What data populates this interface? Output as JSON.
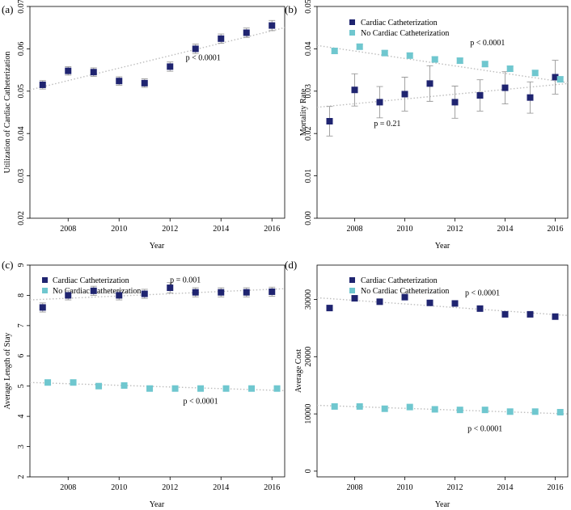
{
  "colors": {
    "cath": "#1f2470",
    "nocath": "#6fc7cf"
  },
  "chart_data": [
    {
      "panel": "(a)",
      "type": "scatter",
      "xlabel": "Year",
      "ylabel": "Utilization of Cardiac Catheterization",
      "xlim": [
        2006.5,
        2016.5
      ],
      "ylim": [
        0.02,
        0.07
      ],
      "xticks": [
        2008,
        2010,
        2012,
        2014,
        2016
      ],
      "xtick_labels": [
        "2008",
        "2010",
        "2012",
        "2014",
        "2016"
      ],
      "yticks": [
        0.02,
        0.03,
        0.04,
        0.05,
        0.06,
        0.07
      ],
      "ytick_labels": [
        "0.02",
        "0.03",
        "0.04",
        "0.05",
        "0.06",
        "0.07"
      ],
      "legend": [],
      "series": [
        {
          "name": "Utilization",
          "color_key": "cath",
          "x": [
            2007,
            2008,
            2009,
            2010,
            2011,
            2012,
            2013,
            2014,
            2015,
            2016
          ],
          "values": [
            0.0515,
            0.0548,
            0.0545,
            0.0524,
            0.0519,
            0.0558,
            0.06,
            0.0624,
            0.0638,
            0.0655
          ],
          "err": [
            0.001,
            0.001,
            0.001,
            0.001,
            0.001,
            0.0011,
            0.0011,
            0.0011,
            0.0011,
            0.0012
          ],
          "trend": [
            0.0503,
            0.065
          ]
        }
      ],
      "annotations": [
        {
          "text": "p < 0.0001",
          "x": 2013.3,
          "y": 0.0573
        }
      ]
    },
    {
      "panel": "(b)",
      "type": "scatter",
      "xlabel": "Year",
      "ylabel": "Mortality Rate",
      "xlim": [
        2006.5,
        2016.5
      ],
      "ylim": [
        0.0,
        0.05
      ],
      "xticks": [
        2008,
        2010,
        2012,
        2014,
        2016
      ],
      "xtick_labels": [
        "2008",
        "2010",
        "2012",
        "2014",
        "2016"
      ],
      "yticks": [
        0.0,
        0.01,
        0.02,
        0.03,
        0.04,
        0.05
      ],
      "ytick_labels": [
        "0.00",
        "0.01",
        "0.02",
        "0.03",
        "0.04",
        "0.05"
      ],
      "legend": [
        "Cardiac Catheterization",
        "No Cardiac Catheterization"
      ],
      "series": [
        {
          "name": "Cardiac Catheterization",
          "color_key": "cath",
          "x": [
            2007,
            2008,
            2009,
            2010,
            2011,
            2012,
            2013,
            2014,
            2015,
            2016
          ],
          "values": [
            0.0229,
            0.0303,
            0.0274,
            0.0293,
            0.0318,
            0.0274,
            0.029,
            0.0308,
            0.0285,
            0.0333
          ],
          "err": [
            0.0035,
            0.0038,
            0.0037,
            0.004,
            0.0042,
            0.0038,
            0.0037,
            0.0038,
            0.0037,
            0.004
          ],
          "trend": [
            0.0262,
            0.0318
          ]
        },
        {
          "name": "No Cardiac Catheterization",
          "color_key": "nocath",
          "x": [
            2007.2,
            2008.2,
            2009.2,
            2010.2,
            2011.2,
            2012.2,
            2013.2,
            2014.2,
            2015.2,
            2016.2
          ],
          "values": [
            0.0395,
            0.0405,
            0.039,
            0.0384,
            0.0375,
            0.0372,
            0.0364,
            0.0353,
            0.0343,
            0.0328
          ],
          "err": [
            0.0006,
            0.0006,
            0.0006,
            0.0006,
            0.0006,
            0.0006,
            0.0006,
            0.0006,
            0.0006,
            0.0006
          ],
          "trend": [
            0.0408,
            0.032
          ]
        }
      ],
      "annotations": [
        {
          "text": "p < 0.0001",
          "x": 2013.3,
          "y": 0.0408
        },
        {
          "text": "p = 0.21",
          "x": 2009.3,
          "y": 0.0218
        }
      ]
    },
    {
      "panel": "(c)",
      "type": "scatter",
      "xlabel": "Year",
      "ylabel": "Average Length of Stay",
      "xlim": [
        2006.5,
        2016.5
      ],
      "ylim": [
        2,
        9
      ],
      "xticks": [
        2008,
        2010,
        2012,
        2014,
        2016
      ],
      "xtick_labels": [
        "2008",
        "2010",
        "2012",
        "2014",
        "2016"
      ],
      "yticks": [
        2,
        3,
        4,
        5,
        6,
        7,
        8,
        9
      ],
      "ytick_labels": [
        "2",
        "3",
        "4",
        "5",
        "6",
        "7",
        "8",
        "9"
      ],
      "legend": [
        "Cardiac Catheterization",
        "No Cardiac Catheterization"
      ],
      "series": [
        {
          "name": "Cardiac Catheterization",
          "color_key": "cath",
          "x": [
            2007,
            2008,
            2009,
            2010,
            2011,
            2012,
            2013,
            2014,
            2015,
            2016
          ],
          "values": [
            7.6,
            8.0,
            8.15,
            8.0,
            8.05,
            8.25,
            8.1,
            8.1,
            8.1,
            8.12
          ],
          "err": [
            0.15,
            0.15,
            0.15,
            0.15,
            0.15,
            0.17,
            0.15,
            0.15,
            0.15,
            0.15
          ],
          "trend": [
            7.85,
            8.22
          ]
        },
        {
          "name": "No Cardiac Catheterization",
          "color_key": "nocath",
          "x": [
            2007.2,
            2008.2,
            2009.2,
            2010.2,
            2011.2,
            2012.2,
            2013.2,
            2014.2,
            2015.2,
            2016.2
          ],
          "values": [
            5.12,
            5.12,
            5.0,
            5.02,
            4.92,
            4.92,
            4.92,
            4.92,
            4.92,
            4.92
          ],
          "err": [
            0.02,
            0.02,
            0.02,
            0.02,
            0.02,
            0.02,
            0.02,
            0.02,
            0.02,
            0.02
          ],
          "trend": [
            5.12,
            4.85
          ]
        }
      ],
      "annotations": [
        {
          "text": "p = 0.001",
          "x": 2012.6,
          "y": 8.42
        },
        {
          "text": "p < 0.0001",
          "x": 2013.2,
          "y": 4.42
        }
      ]
    },
    {
      "panel": "(d)",
      "type": "scatter",
      "xlabel": "Year",
      "ylabel": "Average Cost",
      "xlim": [
        2006.5,
        2016.5
      ],
      "ylim": [
        -1000,
        36000
      ],
      "xticks": [
        2008,
        2010,
        2012,
        2014,
        2016
      ],
      "xtick_labels": [
        "2008",
        "2010",
        "2012",
        "2014",
        "2016"
      ],
      "yticks": [
        0,
        10000,
        20000,
        30000
      ],
      "ytick_labels": [
        "0",
        "10000",
        "20000",
        "30000"
      ],
      "legend": [
        "Cardiac Catheterization",
        "No Cardiac Catheterization"
      ],
      "series": [
        {
          "name": "Cardiac Catheterization",
          "color_key": "cath",
          "x": [
            2007,
            2008,
            2009,
            2010,
            2011,
            2012,
            2013,
            2014,
            2015,
            2016
          ],
          "values": [
            28500,
            30200,
            29600,
            30400,
            29400,
            29300,
            28400,
            27400,
            27400,
            27000
          ],
          "err": [
            300,
            300,
            300,
            300,
            300,
            300,
            300,
            300,
            300,
            300
          ],
          "trend": [
            30300,
            27200
          ]
        },
        {
          "name": "No Cardiac Catheterization",
          "color_key": "nocath",
          "x": [
            2007.2,
            2008.2,
            2009.2,
            2010.2,
            2011.2,
            2012.2,
            2013.2,
            2014.2,
            2015.2,
            2016.2
          ],
          "values": [
            11300,
            11300,
            10900,
            11200,
            10800,
            10700,
            10700,
            10400,
            10400,
            10300
          ],
          "err": [
            80,
            80,
            80,
            80,
            80,
            80,
            80,
            80,
            80,
            80
          ],
          "trend": [
            11500,
            10000
          ]
        }
      ],
      "annotations": [
        {
          "text": "p < 0.0001",
          "x": 2013.1,
          "y": 30700
        },
        {
          "text": "p < 0.0001",
          "x": 2013.2,
          "y": 7000
        }
      ]
    }
  ]
}
